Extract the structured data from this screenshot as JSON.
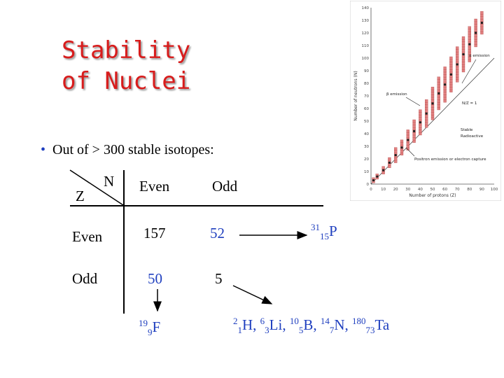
{
  "title": {
    "line1": "Stability",
    "line2": "of Nuclei"
  },
  "bullet": "Out of > 300 stable isotopes:",
  "table": {
    "corner_n": "N",
    "corner_z": "Z",
    "col_headers": [
      "Even",
      "Odd"
    ],
    "rows": [
      {
        "label": "Even",
        "values": [
          "157",
          "52"
        ]
      },
      {
        "label": "Odd",
        "values": [
          "50",
          "5"
        ]
      }
    ]
  },
  "examples": {
    "p31": {
      "mass": "31",
      "z": "15",
      "symbol": "P"
    },
    "f19": {
      "mass": "19",
      "z": "9",
      "symbol": "F"
    },
    "odd_odd": [
      {
        "mass": "2",
        "z": "1",
        "symbol": "H",
        "sep": ", "
      },
      {
        "mass": "6",
        "z": "3",
        "symbol": "Li",
        "sep": ", "
      },
      {
        "mass": "10",
        "z": "5",
        "symbol": "B",
        "sep": ", "
      },
      {
        "mass": "14",
        "z": "7",
        "symbol": "N",
        "sep": ", "
      },
      {
        "mass": "180",
        "z": "73",
        "symbol": "Ta",
        "sep": ""
      }
    ]
  },
  "chart_data": {
    "type": "scatter",
    "title": "",
    "xlabel": "Number of protons (Z)",
    "ylabel": "Number of neutrons (N)",
    "xlim": [
      0,
      100
    ],
    "ylim": [
      0,
      140
    ],
    "x_ticks": [
      "0",
      "10",
      "20",
      "30",
      "40",
      "50",
      "60",
      "70",
      "80",
      "90",
      "100"
    ],
    "y_ticks": [
      "0",
      "10",
      "20",
      "30",
      "40",
      "50",
      "60",
      "70",
      "80",
      "90",
      "100",
      "110",
      "120",
      "130",
      "140"
    ],
    "annotations": {
      "beta_emission": "β emission",
      "alpha_emission": "α emission",
      "ratio_label": "N/Z = 1",
      "positron": "Positron emission or electron capture",
      "legend_stable": "Stable",
      "legend_radioactive": "Radioactive"
    },
    "band": [
      {
        "z": 2,
        "n": [
          2,
          4
        ]
      },
      {
        "z": 5,
        "n": [
          5,
          7
        ]
      },
      {
        "z": 10,
        "n": [
          9,
          13
        ]
      },
      {
        "z": 15,
        "n": [
          14,
          20
        ]
      },
      {
        "z": 20,
        "n": [
          18,
          28
        ]
      },
      {
        "z": 25,
        "n": [
          24,
          34
        ]
      },
      {
        "z": 30,
        "n": [
          28,
          42
        ]
      },
      {
        "z": 35,
        "n": [
          34,
          50
        ]
      },
      {
        "z": 40,
        "n": [
          40,
          58
        ]
      },
      {
        "z": 45,
        "n": [
          46,
          66
        ]
      },
      {
        "z": 50,
        "n": [
          52,
          76
        ]
      },
      {
        "z": 55,
        "n": [
          60,
          84
        ]
      },
      {
        "z": 60,
        "n": [
          66,
          92
        ]
      },
      {
        "z": 65,
        "n": [
          74,
          100
        ]
      },
      {
        "z": 70,
        "n": [
          82,
          108
        ]
      },
      {
        "z": 75,
        "n": [
          90,
          116
        ]
      },
      {
        "z": 80,
        "n": [
          98,
          124
        ]
      },
      {
        "z": 85,
        "n": [
          110,
          130
        ]
      },
      {
        "z": 90,
        "n": [
          120,
          136
        ]
      }
    ],
    "colors": {
      "radioactive": "#e08080",
      "stable": "#202020",
      "background": "#ffffff"
    }
  }
}
